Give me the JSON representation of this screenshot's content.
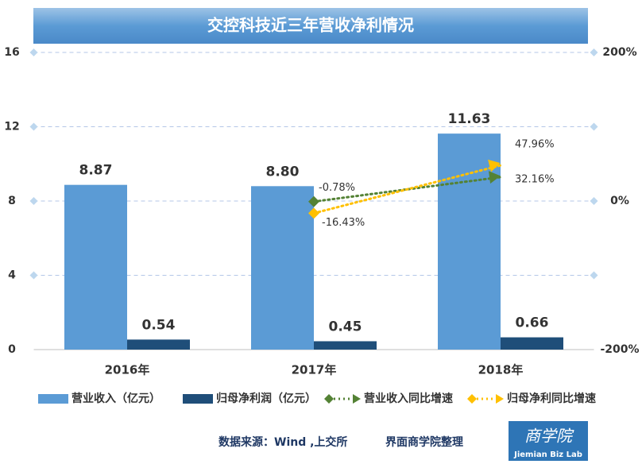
{
  "chart_data": {
    "type": "bar",
    "title": "交控科技近三年营收净利情况",
    "categories": [
      "2016年",
      "2017年",
      "2018年"
    ],
    "series": [
      {
        "name": "营业收入（亿元）",
        "color": "#5b9bd5",
        "values": [
          8.87,
          8.8,
          11.63
        ],
        "value_labels": [
          "8.87",
          "8.80",
          "11.63"
        ]
      },
      {
        "name": "归母净利润（亿元）",
        "color": "#1f4e79",
        "values": [
          0.54,
          0.45,
          0.66
        ],
        "value_labels": [
          "0.54",
          "0.45",
          "0.66"
        ]
      },
      {
        "name": "营业收入同比增速",
        "type": "line",
        "axis": "y2",
        "color": "#548235",
        "values": [
          null,
          -0.78,
          32.16
        ],
        "value_labels": [
          null,
          "-0.78%",
          "32.16%"
        ]
      },
      {
        "name": "归母净利同比增速",
        "type": "line",
        "axis": "y2",
        "color": "#ffc000",
        "values": [
          null,
          -16.43,
          47.96
        ],
        "value_labels": [
          null,
          "-16.43%",
          "47.96%"
        ]
      }
    ],
    "ylim": [
      0,
      16
    ],
    "yticks": [
      0,
      4,
      8,
      12,
      16
    ],
    "y2lim": [
      -200,
      200
    ],
    "y2ticks": [
      {
        "value": -200,
        "label": "-200%"
      },
      {
        "value": 0,
        "label": "0%"
      },
      {
        "value": 200,
        "label": "200%"
      }
    ],
    "grid": true,
    "legend": "bottom",
    "source": "数据来源：Wind ,上交所",
    "credit": "界面商学院整理",
    "logo": {
      "script": "商学院",
      "text": "Jiemian Biz Lab"
    }
  }
}
